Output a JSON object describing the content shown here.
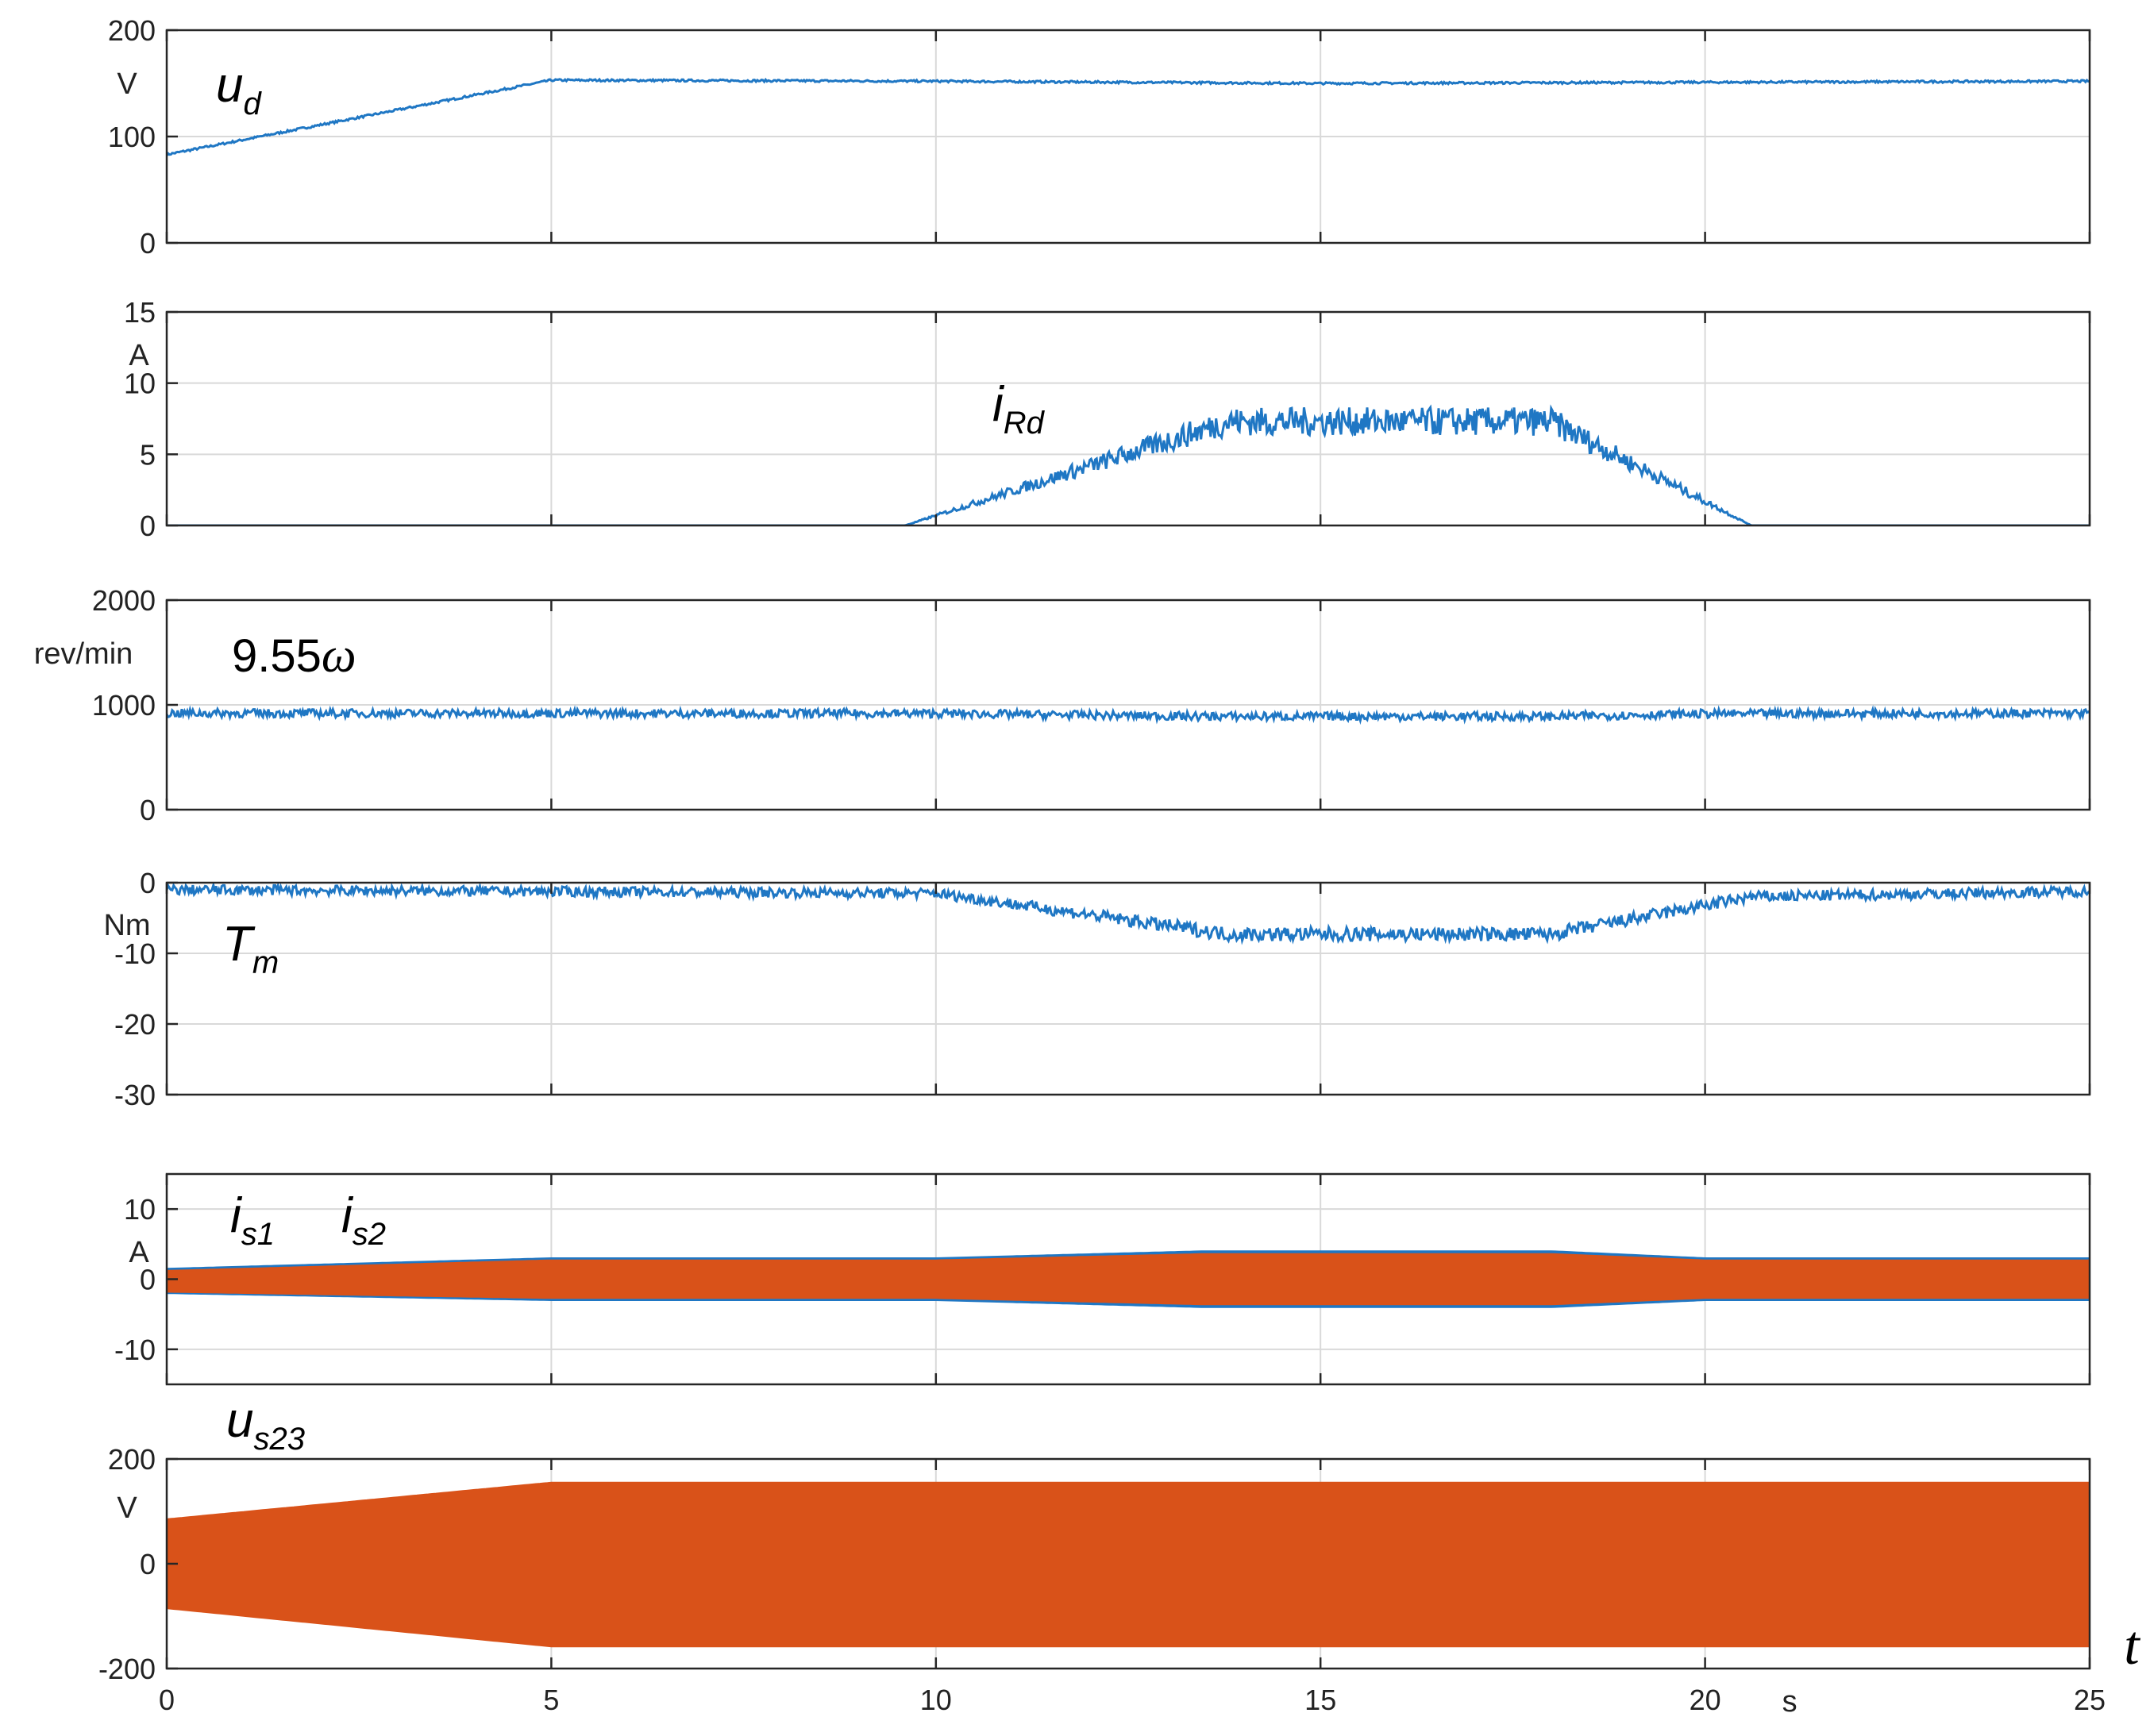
{
  "chart_data": [
    {
      "type": "line",
      "x_range": [
        0,
        25
      ],
      "ylim": [
        0,
        200
      ],
      "yticks": [
        0,
        100,
        200
      ],
      "yunit": "V",
      "grid": true,
      "label": {
        "main": "u",
        "sub": "d"
      },
      "series": [
        {
          "name": "u_d",
          "color": "#1f77c4",
          "x": [
            0,
            5,
            10,
            15,
            20,
            25
          ],
          "y": [
            83,
            153,
            152,
            150,
            151,
            152
          ],
          "noise": [
            1,
            1,
            1,
            1,
            1,
            1
          ]
        }
      ]
    },
    {
      "type": "line",
      "x_range": [
        0,
        25
      ],
      "ylim": [
        0,
        15
      ],
      "yticks": [
        0,
        5,
        10,
        15
      ],
      "yunit": "A",
      "grid": true,
      "label": {
        "main": "i",
        "sub": "Rd"
      },
      "series": [
        {
          "name": "i_Rd",
          "color": "#1f77c4",
          "x": [
            0,
            9.6,
            13.8,
            18,
            20.6,
            25
          ],
          "y": [
            0,
            0,
            7.3,
            7.3,
            0,
            0
          ],
          "noise": [
            0,
            0,
            1,
            1,
            0,
            0
          ]
        }
      ]
    },
    {
      "type": "line",
      "x_range": [
        0,
        25
      ],
      "ylim": [
        0,
        2000
      ],
      "yticks": [
        0,
        1000,
        2000
      ],
      "yunit": "rev/min",
      "grid": true,
      "label": {
        "plain": "9.55",
        "greek": "ω"
      },
      "series": [
        {
          "name": "9.55ω",
          "color": "#1f77c4",
          "x": [
            0,
            10,
            13.5,
            18,
            20,
            25
          ],
          "y": [
            920,
            918,
            890,
            890,
            915,
            920
          ],
          "noise": [
            40,
            40,
            40,
            40,
            40,
            40
          ]
        }
      ]
    },
    {
      "type": "line",
      "x_range": [
        0,
        25
      ],
      "ylim": [
        -30,
        0
      ],
      "yticks": [
        -30,
        -20,
        -10,
        0
      ],
      "yunit": "Nm",
      "grid": true,
      "label": {
        "main": "T",
        "sub": "m"
      },
      "series": [
        {
          "name": "T_m",
          "color": "#1f77c4",
          "x": [
            0,
            10,
            13.8,
            18,
            20.6,
            25
          ],
          "y": [
            -1,
            -1.5,
            -7.3,
            -7.3,
            -2,
            -1.2
          ],
          "noise": [
            0.7,
            0.7,
            1,
            1,
            0.8,
            0.7
          ]
        }
      ]
    },
    {
      "type": "area",
      "x_range": [
        0,
        25
      ],
      "ylim": [
        -15,
        15
      ],
      "yticks": [
        -10,
        0,
        10
      ],
      "yunit": "A",
      "grid": true,
      "labels": [
        {
          "main": "i",
          "sub": "s1"
        },
        {
          "main": "i",
          "sub": "s2"
        }
      ],
      "series": [
        {
          "name": "i_s1",
          "color": "#1f77c4",
          "x": [
            0,
            5,
            10,
            13.5,
            18,
            20,
            25
          ],
          "upper": [
            1.5,
            3,
            3,
            4,
            4,
            3,
            3
          ],
          "lower": [
            -2,
            -3,
            -3,
            -4,
            -4,
            -3,
            -3
          ]
        },
        {
          "name": "i_s2",
          "color": "#d95219",
          "x": [
            0,
            5,
            10,
            13.5,
            18,
            20,
            25
          ],
          "upper": [
            1.2,
            2.7,
            2.7,
            3.6,
            3.6,
            2.7,
            2.7
          ],
          "lower": [
            -1.8,
            -2.7,
            -2.7,
            -3.6,
            -3.6,
            -2.7,
            -2.7
          ]
        }
      ]
    },
    {
      "type": "area",
      "x_range": [
        0,
        25
      ],
      "ylim": [
        -200,
        200
      ],
      "yticks": [
        -200,
        0,
        200
      ],
      "yunit": "V",
      "grid": true,
      "label": {
        "main": "u",
        "sub": "s23"
      },
      "series": [
        {
          "name": "u_s23",
          "color": "#d95219",
          "x": [
            0,
            5,
            25
          ],
          "upper": [
            85,
            155,
            155
          ],
          "lower": [
            -85,
            -158,
            -158
          ]
        }
      ]
    }
  ],
  "x_axis": {
    "ticks": [
      0,
      5,
      10,
      15,
      20,
      25
    ],
    "unit": "s",
    "symbol": "t"
  }
}
